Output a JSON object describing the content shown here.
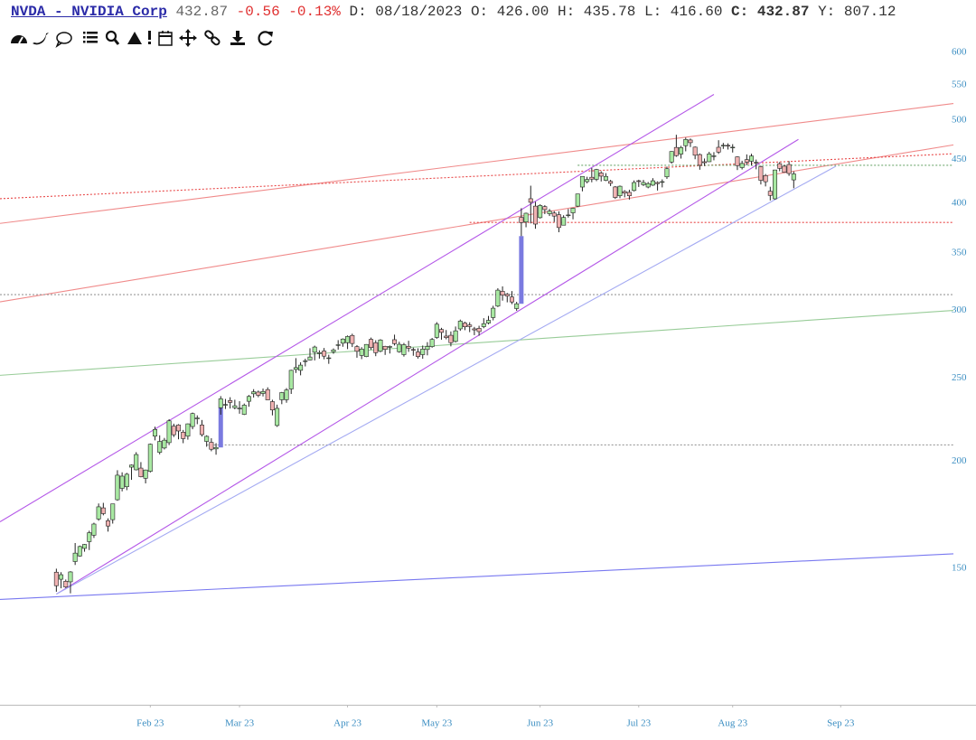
{
  "header": {
    "symbol": "NVDA - NVIDIA Corp",
    "last": "432.87",
    "change": "-0.56",
    "change_pct": "-0.13%",
    "date": "D: 08/18/2023",
    "open": "O: 426.00",
    "high": "H: 435.78",
    "low": "L: 416.60",
    "close_label": "C:",
    "close": "432.87",
    "year_high": "Y: 807.12"
  },
  "chart_data": {
    "type": "candlestick",
    "log_scale": true,
    "grid": false,
    "up_color": "#a8e8a2",
    "down_color": "#f0b2b2",
    "gap_color": "#7a7ae0",
    "xlim": [
      -12,
      191
    ],
    "ylim": [
      104,
      600
    ],
    "yticks": [
      150,
      200,
      250,
      300,
      350,
      400,
      450,
      500,
      550,
      600
    ],
    "xticks": [
      {
        "value": 20,
        "label": "Feb 23"
      },
      {
        "value": 39,
        "label": "Mar 23"
      },
      {
        "value": 62,
        "label": "Apr 23"
      },
      {
        "value": 81,
        "label": "May 23"
      },
      {
        "value": 103,
        "label": "Jun 23"
      },
      {
        "value": 124,
        "label": "Jul 23"
      },
      {
        "value": 144,
        "label": "Aug 23"
      },
      {
        "value": 167,
        "label": "Sep 23"
      }
    ],
    "ohlc": [
      [
        148.5,
        149.9,
        140.9,
        143.2
      ],
      [
        145.7,
        148.5,
        142.2,
        147.5
      ],
      [
        144.9,
        145.6,
        142.3,
        142.7
      ],
      [
        144.7,
        148.9,
        140.3,
        148.6
      ],
      [
        152.8,
        160.6,
        151.4,
        156.3
      ],
      [
        155.1,
        159.5,
        154.8,
        159.1
      ],
      [
        158.3,
        160.2,
        156.9,
        160.0
      ],
      [
        161.2,
        166.0,
        157.6,
        165.1
      ],
      [
        164.0,
        169.6,
        162.8,
        169.0
      ],
      [
        171.3,
        178.6,
        170.5,
        177.0
      ],
      [
        176.5,
        178.9,
        173.0,
        173.8
      ],
      [
        170.5,
        171.6,
        165.6,
        168.1
      ],
      [
        171.0,
        178.4,
        169.2,
        178.4
      ],
      [
        180.4,
        195.3,
        179.9,
        192.7
      ],
      [
        186.0,
        194.2,
        184.5,
        192.2
      ],
      [
        186.8,
        193.9,
        185.1,
        193.2
      ],
      [
        196.9,
        198.3,
        190.3,
        198.0
      ],
      [
        195.5,
        205.0,
        195.2,
        203.7
      ],
      [
        196.4,
        199.6,
        191.6,
        191.9
      ],
      [
        191.1,
        195.6,
        188.5,
        195.4
      ],
      [
        194.7,
        209.8,
        194.1,
        209.4
      ],
      [
        214.0,
        219.5,
        211.6,
        217.9
      ],
      [
        204.9,
        214.5,
        203.8,
        211.0
      ],
      [
        207.3,
        213.0,
        206.5,
        211.7
      ],
      [
        210.3,
        224.0,
        208.9,
        223.0
      ],
      [
        219.8,
        221.3,
        213.5,
        214.8
      ],
      [
        220.5,
        221.0,
        212.2,
        217.0
      ],
      [
        216.3,
        217.6,
        210.0,
        212.6
      ],
      [
        214.0,
        221.4,
        212.0,
        221.2
      ],
      [
        219.6,
        228.0,
        218.0,
        227.4
      ],
      [
        224.2,
        226.3,
        221.0,
        224.7
      ],
      [
        220.5,
        223.5,
        213.8,
        214.9
      ],
      [
        211.0,
        214.5,
        208.0,
        213.9
      ],
      [
        210.5,
        212.8,
        205.5,
        206.6
      ],
      [
        206.8,
        210.0,
        203.6,
        207.6
      ],
      [
        231.0,
        238.3,
        226.7,
        236.6
      ],
      [
        233.0,
        236.5,
        230.2,
        233.0
      ],
      [
        235.5,
        237.6,
        230.5,
        234.3
      ],
      [
        231.0,
        236.0,
        230.0,
        232.2
      ],
      [
        230.6,
        235.1,
        227.3,
        230.7
      ],
      [
        226.9,
        233.6,
        226.5,
        232.6
      ],
      [
        235.0,
        239.0,
        231.6,
        238.1
      ],
      [
        239.8,
        242.8,
        237.4,
        241.1
      ],
      [
        240.9,
        241.9,
        237.6,
        238.8
      ],
      [
        240.0,
        243.2,
        238.1,
        241.3
      ],
      [
        242.5,
        244.0,
        235.7,
        235.9
      ],
      [
        234.8,
        236.0,
        226.3,
        229.6
      ],
      [
        220.2,
        232.9,
        219.4,
        230.6
      ],
      [
        236.0,
        241.0,
        233.2,
        240.6
      ],
      [
        236.0,
        243.5,
        234.1,
        242.3
      ],
      [
        242.9,
        255.8,
        239.7,
        255.4
      ],
      [
        256.0,
        263.9,
        253.6,
        257.3
      ],
      [
        255.4,
        261.0,
        252.0,
        259.0
      ],
      [
        261.8,
        263.5,
        258.1,
        262.0
      ],
      [
        262.6,
        271.0,
        262.4,
        264.7
      ],
      [
        268.1,
        272.9,
        262.3,
        271.9
      ],
      [
        267.2,
        269.5,
        263.6,
        267.8
      ],
      [
        269.0,
        271.2,
        263.1,
        265.3
      ],
      [
        264.0,
        266.3,
        259.9,
        264.1
      ],
      [
        268.5,
        270.9,
        267.0,
        269.8
      ],
      [
        273.6,
        277.0,
        270.0,
        273.6
      ],
      [
        274.7,
        278.3,
        272.1,
        277.8
      ],
      [
        275.1,
        280.5,
        270.4,
        279.7
      ],
      [
        280.5,
        281.8,
        271.9,
        274.5
      ],
      [
        272.2,
        273.3,
        264.2,
        268.8
      ],
      [
        265.8,
        271.8,
        263.2,
        270.4
      ],
      [
        265.0,
        274.0,
        264.6,
        273.8
      ],
      [
        277.6,
        278.9,
        270.0,
        271.5
      ],
      [
        275.0,
        276.9,
        265.3,
        267.8
      ],
      [
        268.8,
        277.7,
        268.1,
        277.1
      ],
      [
        272.4,
        272.8,
        266.2,
        270.2
      ],
      [
        271.7,
        273.0,
        267.2,
        272.3
      ],
      [
        277.3,
        281.1,
        273.0,
        274.4
      ],
      [
        268.5,
        275.8,
        267.8,
        273.9
      ],
      [
        266.4,
        274.9,
        265.0,
        273.6
      ],
      [
        272.4,
        276.5,
        268.4,
        271.1
      ],
      [
        270.1,
        271.5,
        265.6,
        269.6
      ],
      [
        268.3,
        271.0,
        263.6,
        265.0
      ],
      [
        266.4,
        273.0,
        263.5,
        270.4
      ],
      [
        270.1,
        275.5,
        265.9,
        272.3
      ],
      [
        272.2,
        278.6,
        271.4,
        277.5
      ],
      [
        279.0,
        290.7,
        278.0,
        289.1
      ],
      [
        285.0,
        286.3,
        277.3,
        282.8
      ],
      [
        280.0,
        284.6,
        277.6,
        278.9
      ],
      [
        280.6,
        283.5,
        272.4,
        275.1
      ],
      [
        276.0,
        287.3,
        275.3,
        284.0
      ],
      [
        285.5,
        292.7,
        284.0,
        291.5
      ],
      [
        290.0,
        291.0,
        284.5,
        287.1
      ],
      [
        288.5,
        290.6,
        283.0,
        287.3
      ],
      [
        285.5,
        287.0,
        280.7,
        284.7
      ],
      [
        285.9,
        287.9,
        280.3,
        283.4
      ],
      [
        287.2,
        293.8,
        286.0,
        289.5
      ],
      [
        290.0,
        295.6,
        289.0,
        292.1
      ],
      [
        294.3,
        303.8,
        292.1,
        301.8
      ],
      [
        303.5,
        318.4,
        302.7,
        316.8
      ],
      [
        315.8,
        320.0,
        308.0,
        312.6
      ],
      [
        313.4,
        314.4,
        306.6,
        311.8
      ],
      [
        311.0,
        316.0,
        305.1,
        306.9
      ],
      [
        301.5,
        307.0,
        299.7,
        305.4
      ],
      [
        385.2,
        394.8,
        366.3,
        379.8
      ],
      [
        380.4,
        390.1,
        375.1,
        389.5
      ],
      [
        405.0,
        419.4,
        379.0,
        401.1
      ],
      [
        397.0,
        401.7,
        373.6,
        378.3
      ],
      [
        384.9,
        399.0,
        384.0,
        397.7
      ],
      [
        396.5,
        398.0,
        388.6,
        393.3
      ],
      [
        389.0,
        394.0,
        386.6,
        391.7
      ],
      [
        389.7,
        391.7,
        380.5,
        386.5
      ],
      [
        388.0,
        391.5,
        370.1,
        374.8
      ],
      [
        377.2,
        387.4,
        377.0,
        385.1
      ],
      [
        387.6,
        394.0,
        385.0,
        387.7
      ],
      [
        389.9,
        395.3,
        383.2,
        394.8
      ],
      [
        397.0,
        410.4,
        396.0,
        410.2
      ],
      [
        417.9,
        430.0,
        413.1,
        430.0
      ],
      [
        424.0,
        429.6,
        422.1,
        426.5
      ],
      [
        429.0,
        439.9,
        423.3,
        426.9
      ],
      [
        426.6,
        438.8,
        424.6,
        438.1
      ],
      [
        434.0,
        436.0,
        424.2,
        430.3
      ],
      [
        425.5,
        433.8,
        424.6,
        430.0
      ],
      [
        424.3,
        426.0,
        419.0,
        422.1
      ],
      [
        418.0,
        419.0,
        404.8,
        406.3
      ],
      [
        408.2,
        419.6,
        405.6,
        418.8
      ],
      [
        412.9,
        414.4,
        406.5,
        411.2
      ],
      [
        412.0,
        414.9,
        404.0,
        408.2
      ],
      [
        414.0,
        425.4,
        413.0,
        423.0
      ],
      [
        425.0,
        426.2,
        418.0,
        424.1
      ],
      [
        420.5,
        426.0,
        419.1,
        423.0
      ],
      [
        417.9,
        423.6,
        416.5,
        421.8
      ],
      [
        420.0,
        428.0,
        419.2,
        425.0
      ],
      [
        423.0,
        424.3,
        414.0,
        421.8
      ],
      [
        423.5,
        426.6,
        417.5,
        424.0
      ],
      [
        429.5,
        441.4,
        427.2,
        439.0
      ],
      [
        446.9,
        460.2,
        445.0,
        459.8
      ],
      [
        464.8,
        480.9,
        453.3,
        454.7
      ],
      [
        456.6,
        466.8,
        451.1,
        464.6
      ],
      [
        467.0,
        477.3,
        460.0,
        474.9
      ],
      [
        474.2,
        476.1,
        465.3,
        470.8
      ],
      [
        465.2,
        466.0,
        450.3,
        455.2
      ],
      [
        456.0,
        457.3,
        437.8,
        443.1
      ],
      [
        447.3,
        451.2,
        442.2,
        446.1
      ],
      [
        447.3,
        459.4,
        447.0,
        456.8
      ],
      [
        453.6,
        459.0,
        449.0,
        454.5
      ],
      [
        465.0,
        473.9,
        456.8,
        459.0
      ],
      [
        466.8,
        470.5,
        463.0,
        467.5
      ],
      [
        467.4,
        470.0,
        462.2,
        467.3
      ],
      [
        464.6,
        468.9,
        458.5,
        465.1
      ],
      [
        453.2,
        453.8,
        437.4,
        442.7
      ],
      [
        440.3,
        448.5,
        438.1,
        445.2
      ],
      [
        449.8,
        456.2,
        443.2,
        446.8
      ],
      [
        447.9,
        457.0,
        442.8,
        454.2
      ],
      [
        445.8,
        449.9,
        438.3,
        446.6
      ],
      [
        441.5,
        442.5,
        420.8,
        425.5
      ],
      [
        431.0,
        432.8,
        418.6,
        423.9
      ],
      [
        413.2,
        418.2,
        403.1,
        408.6
      ],
      [
        404.9,
        437.7,
        404.0,
        437.5
      ],
      [
        445.0,
        446.8,
        436.0,
        439.4
      ],
      [
        442.0,
        443.5,
        434.3,
        434.8
      ],
      [
        444.0,
        448.0,
        430.7,
        433.4
      ],
      [
        426.0,
        435.78,
        416.6,
        432.87
      ]
    ],
    "gaps": [
      [
        35,
        207.6,
        231.0
      ],
      [
        99,
        305.4,
        366.3
      ]
    ],
    "lines": [
      {
        "color": "#f08a8a",
        "dash": false,
        "points": [
          [
            -12,
            379
          ],
          [
            191,
            523
          ]
        ]
      },
      {
        "color": "#f08a8a",
        "dash": false,
        "points": [
          [
            -12,
            307
          ],
          [
            191,
            468
          ]
        ]
      },
      {
        "color": "#e84848",
        "dash": true,
        "points": [
          [
            -12,
            405
          ],
          [
            191,
            457
          ]
        ]
      },
      {
        "color": "#e84848",
        "dash": true,
        "points": [
          [
            88,
            380
          ],
          [
            191,
            380
          ]
        ]
      },
      {
        "color": "#70a870",
        "dash": true,
        "points": [
          [
            111,
            443
          ],
          [
            191,
            443
          ]
        ]
      },
      {
        "color": "#999999",
        "dash": true,
        "points": [
          [
            -12,
            313
          ],
          [
            191,
            313
          ]
        ]
      },
      {
        "color": "#999999",
        "dash": true,
        "points": [
          [
            32,
            209
          ],
          [
            191,
            209
          ]
        ]
      },
      {
        "color": "#98cc98",
        "dash": false,
        "points": [
          [
            -12,
            252
          ],
          [
            191,
            300
          ]
        ]
      },
      {
        "color": "#7878f0",
        "dash": false,
        "points": [
          [
            -12,
            138
          ],
          [
            191,
            156
          ]
        ]
      },
      {
        "color": "#b458e8",
        "dash": false,
        "points": [
          [
            -12,
            170
          ],
          [
            140,
            536
          ]
        ]
      },
      {
        "color": "#b458e8",
        "dash": false,
        "points": [
          [
            0,
            140
          ],
          [
            158,
            475
          ]
        ]
      },
      {
        "color": "#a4aaf2",
        "dash": false,
        "points": [
          [
            0,
            140
          ],
          [
            166,
            442
          ]
        ]
      }
    ]
  }
}
